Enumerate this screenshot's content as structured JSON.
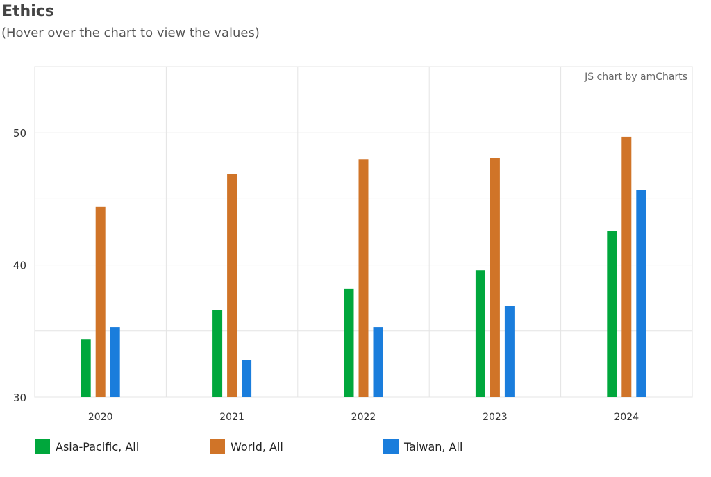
{
  "header": {
    "title": "Ethics",
    "subtitle": "(Hover over the chart to view the values)"
  },
  "credit": "JS chart by amCharts",
  "chart_data": {
    "type": "bar",
    "categories": [
      "2020",
      "2021",
      "2022",
      "2023",
      "2024"
    ],
    "ylim": [
      30,
      55
    ],
    "yticks": [
      "30",
      "40",
      "50"
    ],
    "grid": true,
    "legend_position": "bottom",
    "series": [
      {
        "name": "Asia-Pacific, All",
        "color": "#00a73c",
        "values": [
          34.4,
          36.6,
          38.2,
          39.6,
          42.6
        ]
      },
      {
        "name": "World, All",
        "color": "#d07428",
        "values": [
          44.4,
          46.9,
          48.0,
          48.1,
          49.7
        ]
      },
      {
        "name": "Taiwan, All",
        "color": "#1a7ddc",
        "values": [
          35.3,
          32.8,
          35.3,
          36.9,
          45.7
        ]
      }
    ]
  }
}
